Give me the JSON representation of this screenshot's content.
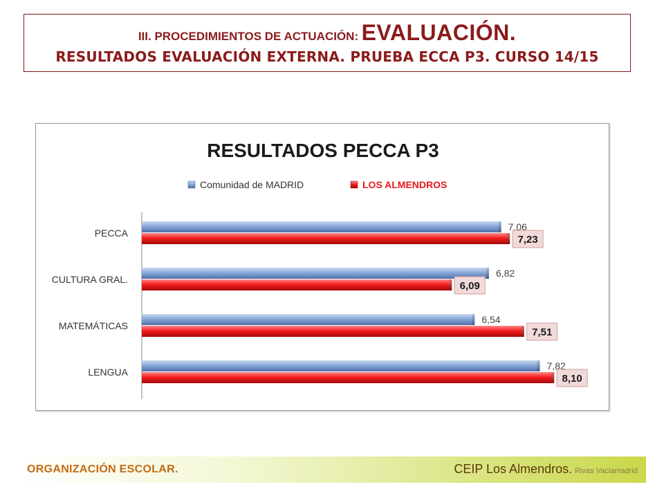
{
  "header": {
    "line1_prefix": "III. PROCEDIMIENTOS DE ACTUACIÓN:",
    "line1_highlight": "EVALUACIÓN.",
    "line2": "RESULTADOS EVALUACIÓN EXTERNA. PRUEBA ECCA P3. CURSO 14/15"
  },
  "chart_data": {
    "type": "bar",
    "orientation": "horizontal",
    "title": "RESULTADOS PECCA P3",
    "categories": [
      "PECCA",
      "CULTURA GRAL.",
      "MATEMÁTICAS",
      "LENGUA"
    ],
    "series": [
      {
        "name": "Comunidad de MADRID",
        "values": [
          7.06,
          6.82,
          6.54,
          7.82
        ],
        "labels": [
          "7,06",
          "6,82",
          "6,54",
          "7,82"
        ],
        "color": "#7f9fd0"
      },
      {
        "name": "LOS ALMENDROS",
        "values": [
          7.23,
          6.09,
          7.51,
          8.1
        ],
        "labels": [
          "7,23",
          "6,09",
          "7,51",
          "8,10"
        ],
        "color": "#ee1c1c"
      }
    ],
    "xlim": [
      0,
      10
    ],
    "legend": "top",
    "grid": false,
    "colors": {
      "label_box_fill": "#f2dada",
      "label_box_border": "#c9a0a0"
    }
  },
  "footer": {
    "left": "ORGANIZACIÓN ESCOLAR",
    "left_dot": ".",
    "right_main": "CEIP Los Almendros.",
    "right_small": "Rivas Vaciamadrid"
  }
}
